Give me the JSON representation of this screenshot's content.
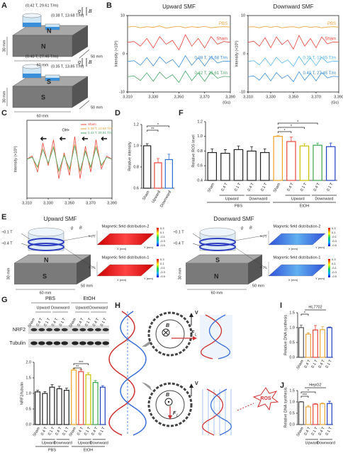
{
  "panel_labels": [
    "A",
    "B",
    "C",
    "D",
    "E",
    "F",
    "G",
    "H",
    "I",
    "J"
  ],
  "panel_a": {
    "top_labels": [
      "(0.42 T, 29.61 T/m)",
      "(0.38 T, 13.68 T/m)"
    ],
    "bottom_labels": [
      "(0.40 T, 27.45 T/m)",
      "(0.35 T, 13.85 T/m)"
    ],
    "north": "N",
    "south": "S",
    "g": "g",
    "b": "B",
    "dims": [
      "30 mm",
      "60 mm",
      "50 mm"
    ]
  },
  "panel_e": {
    "titles": [
      "Upward SMF",
      "Downward SMF"
    ],
    "field_labels": [
      "~0.1 T",
      "~0.4 T"
    ],
    "distribution_titles": [
      "Magnetic field distribution-2",
      "Magnetic field distribution-1"
    ],
    "colorbar_ticks": [
      "0.3",
      "0.1",
      "-0.1",
      "-0.3",
      "-0.5"
    ],
    "axis_labels": [
      "B (T)",
      "X (mm)",
      "Y (mm)"
    ]
  },
  "panel_g_blot": {
    "groups": [
      "PBS",
      "EtOH"
    ],
    "directions": [
      "Upward",
      "Downward"
    ],
    "lanes": [
      "Sham",
      "0.4 T",
      "0.1 T",
      "0.4 T",
      "0.1 T"
    ],
    "proteins": [
      "NRF2",
      "Tubulin"
    ]
  },
  "panel_h": {
    "field": "B",
    "force": "F",
    "force_sub": "L",
    "velocity": "V",
    "ros": "ROS"
  },
  "chart_data": [
    {
      "type": "line",
      "title": "Upward SMF",
      "xlabel": "(Gs)",
      "ylabel": "Intensity (×10⁵)",
      "x": [
        3310,
        3315,
        3320,
        3325,
        3330,
        3335,
        3340,
        3345,
        3350,
        3355,
        3360,
        3365,
        3370,
        3375,
        3380,
        3385,
        3390
      ],
      "xlim": [
        3310,
        3390
      ],
      "xticks": [
        {
          "value": 3310,
          "label": "3,310"
        },
        {
          "value": 3330,
          "label": "3,330"
        },
        {
          "value": 3350,
          "label": "3,350"
        },
        {
          "value": 3370,
          "label": "3,370"
        },
        {
          "value": 3390,
          "label": "3,390"
        }
      ],
      "ylim": [
        -10,
        10
      ],
      "yticks": [
        -10,
        0,
        10
      ],
      "series": [
        {
          "name": "PBS",
          "color": "#e8a33a",
          "values": [
            7,
            7.2,
            6.8,
            7.1,
            6.9,
            7.3,
            6.7,
            7,
            7.2,
            6.8,
            7.1,
            6.9,
            7.2,
            6.8,
            7,
            7.1,
            7
          ]
        },
        {
          "name": "Sham",
          "color": "#e8453c",
          "values": [
            3,
            3.2,
            2,
            4,
            1.5,
            4.5,
            2.5,
            3.5,
            1,
            5,
            2,
            4,
            1.5,
            4.5,
            2.5,
            3.2,
            3
          ]
        },
        {
          "name": "0.38 T, 13.68 T/m",
          "color": "#3f8fd8",
          "values": [
            -2,
            -1.8,
            -3,
            -1,
            -3.2,
            -0.8,
            -2.5,
            -1.5,
            -3.5,
            -0.5,
            -3,
            -1,
            -3.2,
            -0.8,
            -2.4,
            -1.9,
            -2
          ]
        },
        {
          "name": "0.42 T, 29.61 T/m",
          "color": "#4aa86a",
          "values": [
            -6,
            -5.8,
            -7,
            -5,
            -7.2,
            -4.8,
            -6.5,
            -5.5,
            -7.5,
            -4.5,
            -7,
            -5,
            -7.2,
            -4.8,
            -6.4,
            -5.9,
            -6
          ]
        }
      ]
    },
    {
      "type": "line",
      "title": "Downward SMF",
      "xlabel": "(Gs)",
      "ylabel": "Intensity (×10⁵)",
      "x": [
        3310,
        3315,
        3320,
        3325,
        3330,
        3335,
        3340,
        3345,
        3350,
        3355,
        3360,
        3365,
        3370,
        3375,
        3380,
        3385,
        3390
      ],
      "xlim": [
        3310,
        3390
      ],
      "xticks": [
        {
          "value": 3310,
          "label": "3,310"
        },
        {
          "value": 3330,
          "label": "3,330"
        },
        {
          "value": 3350,
          "label": "3,350"
        },
        {
          "value": 3370,
          "label": "3,370"
        },
        {
          "value": 3390,
          "label": "3,390"
        }
      ],
      "ylim": [
        -10,
        10
      ],
      "yticks": [
        -10,
        0,
        10
      ],
      "series": [
        {
          "name": "PBS",
          "color": "#e8a33a",
          "values": [
            7,
            7.1,
            6.8,
            7.2,
            6.9,
            7.2,
            6.8,
            7,
            7.1,
            6.8,
            7.2,
            6.9,
            7.1,
            6.8,
            7,
            7.1,
            7
          ]
        },
        {
          "name": "Sham",
          "color": "#e8453c",
          "values": [
            3,
            3.3,
            2,
            4.2,
            1.6,
            4.4,
            2.4,
            3.6,
            1.2,
            4.8,
            2,
            4,
            1.6,
            4.4,
            2.6,
            3.1,
            3
          ]
        },
        {
          "name": "0.35 T, 13.85 T/m",
          "color": "#58b8e8",
          "values": [
            -2,
            -1.8,
            -2.9,
            -1.1,
            -3.1,
            -0.9,
            -2.4,
            -1.6,
            -3.3,
            -0.7,
            -2.9,
            -1.1,
            -3.1,
            -0.9,
            -2.3,
            -1.9,
            -2
          ]
        },
        {
          "name": "0.40 T, 27.45 T/m",
          "color": "#3f8fd8",
          "values": [
            -6,
            -5.8,
            -6.9,
            -5.1,
            -7.1,
            -4.9,
            -6.4,
            -5.6,
            -7.3,
            -4.7,
            -6.9,
            -5.1,
            -7.1,
            -4.9,
            -6.3,
            -5.9,
            -6
          ]
        }
      ]
    },
    {
      "type": "line",
      "ylabel": "Intensity (×10⁵)",
      "legend": "upper right",
      "annotation": "OH•",
      "x": [
        3310,
        3315,
        3320,
        3325,
        3330,
        3335,
        3340,
        3345,
        3350,
        3355,
        3360,
        3365,
        3370,
        3375,
        3380,
        3385,
        3390
      ],
      "xlim": [
        3310,
        3390
      ],
      "xticks": [
        {
          "value": 3310,
          "label": "3,310"
        },
        {
          "value": 3330,
          "label": "3,330"
        },
        {
          "value": 3350,
          "label": "3,350"
        },
        {
          "value": 3370,
          "label": "3,370"
        },
        {
          "value": 3390,
          "label": "3,390"
        }
      ],
      "ylim": [
        -6,
        6
      ],
      "series": [
        {
          "name": "Sham",
          "color": "#e8453c",
          "values": [
            0,
            0.5,
            -2,
            2.5,
            -1,
            3,
            -3,
            1,
            -2.5,
            3.5,
            -3,
            2,
            -2,
            3,
            -1.5,
            0.5,
            0
          ]
        },
        {
          "name": "0.38 T, 13.68 T/m",
          "color": "#e8a33a",
          "values": [
            0,
            0.3,
            -1.3,
            1.6,
            -0.7,
            2,
            -2,
            0.7,
            -1.7,
            2.3,
            -2,
            1.3,
            -1.3,
            2,
            -1,
            0.3,
            0
          ]
        },
        {
          "name": "0.42 T, 29.61 T/m",
          "color": "#4aa86a",
          "values": [
            0,
            0.3,
            -1.2,
            1.5,
            -0.6,
            1.8,
            -1.8,
            0.6,
            -1.5,
            2.1,
            -1.8,
            1.2,
            -1.2,
            1.8,
            -0.9,
            0.3,
            0
          ]
        }
      ]
    },
    {
      "type": "bar",
      "ylabel": "Relative intensity",
      "categories": [
        "Sham",
        "Upward",
        "Downward"
      ],
      "values": [
        1.0,
        0.84,
        0.87
      ],
      "errors": [
        0.02,
        0.04,
        0.05
      ],
      "colors": [
        "#222222",
        "#e8453c",
        "#2f6fd8"
      ],
      "ylim": [
        0.6,
        1.2
      ],
      "yticks": [
        0.6,
        0.8,
        {
          "value": 1,
          "label": "1.0"
        },
        1.2
      ],
      "annotations": [
        "**",
        "*"
      ]
    },
    {
      "type": "bar",
      "ylabel": "Relative ROS level",
      "categories": [
        "Sham",
        "0.4 T",
        "0.1 T",
        "0.4 T",
        "0.1 T",
        "Sham",
        "0.4 T",
        "0.1 T",
        "0.4 T",
        "0.1 T"
      ],
      "directions": [
        "Upward",
        "Downward"
      ],
      "supergroups": [
        "PBS",
        "EtOH"
      ],
      "values": [
        0.78,
        0.77,
        0.82,
        0.8,
        0.78,
        1.0,
        0.93,
        0.87,
        0.88,
        0.86
      ],
      "errors": [
        0.05,
        0.05,
        0.05,
        0.06,
        0.05,
        0.01,
        0.06,
        0.03,
        0.03,
        0.05
      ],
      "colors": [
        "#222222",
        "#222222",
        "#222222",
        "#222222",
        "#222222",
        "#f0a020",
        "#e8453c",
        "#c8c000",
        "#3aa648",
        "#2040c0"
      ],
      "ylim": [
        0.4,
        1.2
      ],
      "yticks": [
        0.4,
        0.6,
        0.8,
        {
          "value": 1,
          "label": "1.0"
        },
        1.2
      ],
      "annotations": [
        "*",
        "*",
        "*"
      ]
    },
    {
      "type": "bar",
      "ylabel": "NRF2/tubulin",
      "categories": [
        "Sham",
        "0.4 T",
        "0.1 T",
        "0.4 T",
        "0.1 T",
        "Sham",
        "0.4 T",
        "0.1 T",
        "0.4 T",
        "0.1 T"
      ],
      "directions": [
        "Upward",
        "Downward"
      ],
      "supergroups": [
        "PBS",
        "EtOH"
      ],
      "values": [
        1.05,
        1.0,
        1.2,
        1.15,
        1.1,
        1.75,
        1.7,
        1.6,
        1.35,
        1.2
      ],
      "errors": [
        0.05,
        0.06,
        0.08,
        0.08,
        0.07,
        0.05,
        0.06,
        0.06,
        0.06,
        0.05
      ],
      "colors": [
        "#222222",
        "#222222",
        "#222222",
        "#222222",
        "#222222",
        "#f0a020",
        "#e8453c",
        "#c8c000",
        "#3aa648",
        "#2040c0"
      ],
      "ylim": [
        0,
        2
      ],
      "yticks": [
        {
          "value": 0,
          "label": "0.0"
        },
        0.5,
        {
          "value": 1,
          "label": "1.0"
        },
        1.5,
        {
          "value": 2,
          "label": "2.0"
        }
      ],
      "annotations": [
        "**",
        "***"
      ]
    },
    {
      "type": "bar",
      "title": "HL7702",
      "ylabel": "Relative DNA synthesis",
      "categories": [
        "Sham",
        "0.4 T",
        "0.1 T",
        "0.4 T",
        "0.1 T"
      ],
      "values": [
        1.0,
        0.78,
        0.92,
        0.93,
        1.0
      ],
      "errors": [
        0.08,
        0.04,
        0.15,
        0.1,
        0.02
      ],
      "colors": [
        "#555555",
        "#e8a33a",
        "#e8453c",
        "#e8a33a",
        "#2040c0"
      ],
      "ylim": [
        0,
        1.5
      ],
      "yticks": [
        {
          "value": 0,
          "label": "0.0"
        },
        0.5,
        {
          "value": 1,
          "label": "1.0"
        },
        1.5
      ],
      "annotations": [
        "*"
      ]
    },
    {
      "type": "bar",
      "title": "HepG2",
      "ylabel": "Relative DNA synthesis",
      "categories": [
        "Sham",
        "0.4 T",
        "0.1 T",
        "0.4 T",
        "0.1 T"
      ],
      "directions": [
        "Upward",
        "Downward"
      ],
      "values": [
        1.0,
        0.78,
        0.9,
        0.92,
        0.93
      ],
      "errors": [
        0.02,
        0.06,
        0.02,
        0.04,
        0.1
      ],
      "colors": [
        "#555555",
        "#e8a33a",
        "#e8453c",
        "#e8a33a",
        "#2040c0"
      ],
      "ylim": [
        0,
        1.5
      ],
      "yticks": [
        {
          "value": 0,
          "label": "0.0"
        },
        0.5,
        {
          "value": 1,
          "label": "1.0"
        },
        1.5
      ],
      "annotations": [
        "***",
        "*"
      ]
    }
  ]
}
